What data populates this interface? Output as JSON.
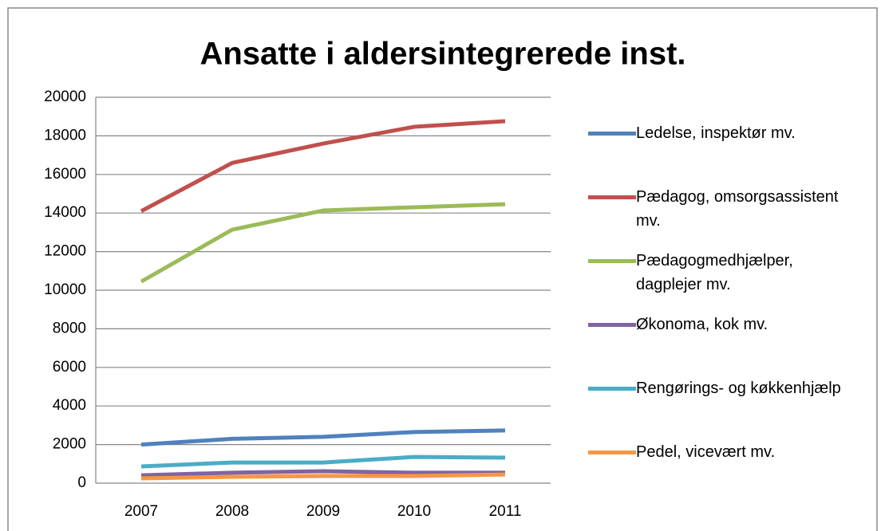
{
  "chart_data": {
    "type": "line",
    "title": "Ansatte i aldersintegrerede inst.",
    "categories": [
      "2007",
      "2008",
      "2009",
      "2010",
      "2011"
    ],
    "series": [
      {
        "name": "Ledelse, inspektør mv.",
        "color": "#4f81bd",
        "values": [
          2000,
          2300,
          2400,
          2650,
          2730
        ]
      },
      {
        "name": "Pædagog, omsorgsassistent mv.",
        "color": "#c0504d",
        "values": [
          14100,
          16600,
          17600,
          18470,
          18760
        ]
      },
      {
        "name": "Pædagogmedhjælper, dagplejer mv.",
        "color": "#9bbb59",
        "values": [
          10450,
          13140,
          14130,
          14300,
          14460
        ]
      },
      {
        "name": "Økonoma, kok mv.",
        "color": "#8064a2",
        "values": [
          410,
          540,
          620,
          540,
          540
        ]
      },
      {
        "name": "Rengørings- og køkkenhjælp",
        "color": "#4bacc6",
        "values": [
          870,
          1070,
          1070,
          1360,
          1320
        ]
      },
      {
        "name": "Pedel, vicevært mv.",
        "color": "#f79646",
        "values": [
          250,
          330,
          370,
          370,
          450
        ]
      }
    ],
    "ylim": [
      0,
      20000
    ],
    "yticks": [
      0,
      2000,
      4000,
      6000,
      8000,
      10000,
      12000,
      14000,
      16000,
      18000,
      20000
    ],
    "grid": true,
    "legend": "right"
  }
}
